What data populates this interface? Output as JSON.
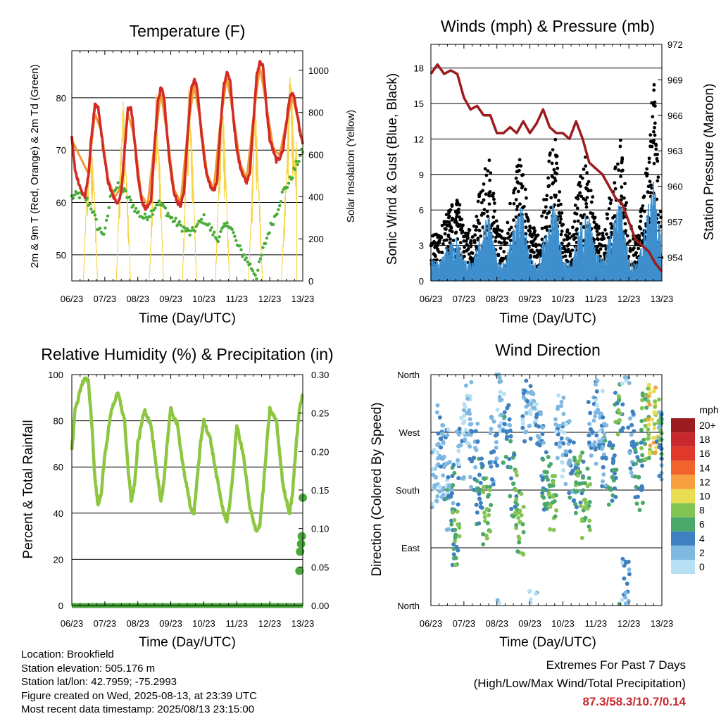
{
  "x_ticks": [
    "06/23",
    "07/23",
    "08/23",
    "09/23",
    "10/23",
    "11/23",
    "12/23",
    "13/23"
  ],
  "time_axis_label": "Time (Day/UTC)",
  "chart_data": [
    {
      "id": "temperature",
      "type": "line",
      "title": "Temperature (F)",
      "ylabel_left": "2m & 9m T (Red, Orange) & 2m Td (Green)",
      "ylabel_right": "Solar Insolation (Yellow)",
      "ylim_left": [
        45,
        89
      ],
      "yticks_left": [
        50,
        60,
        70,
        80
      ],
      "ylim_right": [
        0,
        1093
      ],
      "yticks_right": [
        0,
        200,
        400,
        600,
        800,
        1000
      ],
      "x_unit": "days after 06/23 00 UTC",
      "series": [
        {
          "color": "#d42a25",
          "axis": "left",
          "x": [
            0,
            0.1,
            0.2,
            0.3,
            0.4,
            0.5,
            0.6,
            0.7,
            0.8,
            0.9,
            1.0,
            1.1,
            1.2,
            1.3,
            1.4,
            1.5,
            1.6,
            1.7,
            1.8,
            1.9,
            2.0,
            2.1,
            2.2,
            2.3,
            2.4,
            2.5,
            2.6,
            2.7,
            2.8,
            2.9,
            3.0,
            3.1,
            3.2,
            3.3,
            3.4,
            3.5,
            3.6,
            3.7,
            3.8,
            3.9,
            4.0,
            4.1,
            4.2,
            4.3,
            4.4,
            4.5,
            4.6,
            4.7,
            4.8,
            4.9,
            5.0,
            5.1,
            5.2,
            5.3,
            5.4,
            5.5,
            5.6,
            5.7,
            5.8,
            5.9,
            6.0,
            6.1,
            6.2,
            6.3,
            6.4,
            6.5,
            6.6,
            6.7,
            6.8,
            6.9,
            7.0
          ],
          "y": [
            72.5,
            66,
            64,
            62,
            61,
            65,
            73,
            78.5,
            78,
            73,
            68,
            64,
            62,
            60.5,
            60,
            62,
            70,
            78,
            78,
            72,
            65,
            61,
            59,
            59,
            60,
            70,
            79,
            82,
            80,
            72,
            66,
            62,
            60,
            59.5,
            62,
            72,
            81,
            83.5,
            82,
            75,
            69,
            65,
            63,
            62,
            64,
            74,
            82,
            85,
            83,
            76,
            70,
            67,
            65,
            64,
            66,
            75,
            84,
            87,
            86,
            78,
            72,
            70,
            68,
            68.5,
            70,
            75,
            80,
            81,
            78,
            74,
            71
          ]
        },
        {
          "color": "#f09a34",
          "axis": "left",
          "x": [
            0,
            0.5,
            0.7,
            0.9,
            1.1,
            1.3,
            1.5,
            1.7,
            1.9,
            2.1,
            2.3,
            2.5,
            2.7,
            2.9,
            3.1,
            3.3,
            3.5,
            3.7,
            3.9,
            4.1,
            4.3,
            4.5,
            4.7,
            4.9,
            5.1,
            5.3,
            5.5,
            5.7,
            5.9,
            6.1,
            6.3,
            6.5,
            6.7,
            6.9,
            7.0
          ],
          "y": [
            72,
            65.5,
            77,
            73.5,
            64.5,
            61,
            63,
            77,
            72.5,
            61.5,
            59.5,
            71,
            81,
            72.5,
            62.5,
            60,
            73,
            82.5,
            75.5,
            65.5,
            62.5,
            75,
            84,
            76.5,
            67.5,
            64.5,
            76,
            86,
            78.5,
            70.5,
            69,
            75.5,
            80,
            74.5,
            71.5
          ]
        },
        {
          "color": "#4aad3a",
          "axis": "left",
          "x": [
            0,
            0.2,
            0.4,
            0.6,
            0.8,
            1.0,
            1.2,
            1.4,
            1.6,
            1.8,
            2.0,
            2.2,
            2.4,
            2.6,
            2.8,
            3.0,
            3.2,
            3.4,
            3.6,
            3.8,
            4.0,
            4.2,
            4.4,
            4.6,
            4.8,
            5.0,
            5.2,
            5.4,
            5.6,
            5.8,
            6.0,
            6.2,
            6.4,
            6.6,
            6.8,
            7.0
          ],
          "y": [
            61,
            61.5,
            61,
            59,
            55,
            54,
            62,
            63,
            62,
            60,
            58,
            57,
            58,
            60,
            59,
            57,
            56,
            55,
            54,
            55.5,
            57,
            55,
            53,
            55,
            56,
            52,
            50,
            48,
            46,
            51,
            55,
            58,
            62,
            64,
            67,
            70
          ]
        },
        {
          "color": "#f7d54a",
          "axis": "right",
          "x": [
            0.35,
            0.45,
            0.55,
            0.68,
            0.78,
            1.35,
            1.45,
            1.55,
            1.68,
            1.78,
            2.35,
            2.45,
            2.55,
            2.68,
            2.78,
            3.35,
            3.45,
            3.55,
            3.68,
            3.78,
            4.35,
            4.45,
            4.55,
            4.68,
            4.78,
            5.35,
            5.45,
            5.55,
            5.68,
            5.78,
            6.35,
            6.5,
            6.62,
            6.75,
            6.85,
            6.95
          ],
          "y": [
            0,
            450,
            700,
            500,
            0,
            0,
            500,
            900,
            450,
            0,
            0,
            480,
            920,
            520,
            0,
            0,
            510,
            960,
            520,
            0,
            0,
            500,
            950,
            500,
            0,
            0,
            400,
            900,
            450,
            0,
            0,
            550,
            1090,
            600,
            700,
            0
          ]
        }
      ]
    },
    {
      "id": "winds",
      "type": "scatter",
      "title": "Winds (mph) & Pressure (mb)",
      "ylabel_left": "Sonic Wind & Gust (Blue, Black)",
      "ylabel_right": "Station Pressure (Maroon)",
      "ylim_left": [
        0,
        20
      ],
      "yticks_left": [
        0,
        3,
        6,
        9,
        12,
        15,
        18
      ],
      "ylim_right": [
        952,
        972
      ],
      "yticks_right": [
        954,
        957,
        960,
        963,
        966,
        969,
        972
      ],
      "x_unit": "days after 06/23 00 UTC",
      "series": [
        {
          "color": "#3f8fcd",
          "kind": "sustained",
          "x": [
            0,
            0.25,
            0.5,
            0.75,
            1.0,
            1.25,
            1.5,
            1.75,
            2.0,
            2.25,
            2.5,
            2.75,
            3.0,
            3.25,
            3.5,
            3.75,
            4.0,
            4.25,
            4.5,
            4.75,
            5.0,
            5.25,
            5.5,
            5.75,
            6.0,
            6.25,
            6.5,
            6.75,
            7.0
          ],
          "y": [
            2,
            1.5,
            3,
            4,
            2,
            1.5,
            4,
            6,
            2,
            1.5,
            4.5,
            6.5,
            2,
            1.5,
            5,
            7,
            2,
            1.5,
            4.5,
            6.5,
            2.5,
            2,
            5,
            7,
            2,
            1.5,
            5,
            9,
            3
          ]
        },
        {
          "color": "#000000",
          "kind": "gust",
          "x": [
            0,
            0.25,
            0.5,
            0.75,
            1.0,
            1.25,
            1.5,
            1.75,
            2.0,
            2.25,
            2.5,
            2.75,
            3.0,
            3.25,
            3.5,
            3.75,
            4.0,
            4.25,
            4.5,
            4.75,
            5.0,
            5.25,
            5.5,
            5.75,
            6.0,
            6.25,
            6.5,
            6.75,
            7.0
          ],
          "y": [
            5,
            4,
            6,
            8,
            5,
            4,
            8,
            11,
            5,
            4,
            9,
            11,
            5,
            4,
            9,
            13,
            5,
            4,
            9,
            11,
            5,
            4,
            9,
            12,
            5,
            4,
            9,
            17.5,
            5
          ]
        },
        {
          "color": "#9b1c1f",
          "kind": "pressure",
          "axis": "right",
          "x": [
            0,
            0.2,
            0.4,
            0.6,
            0.8,
            1.0,
            1.2,
            1.4,
            1.6,
            1.8,
            2.0,
            2.2,
            2.4,
            2.6,
            2.8,
            3.0,
            3.2,
            3.4,
            3.6,
            3.8,
            4.0,
            4.2,
            4.4,
            4.6,
            4.8,
            5.0,
            5.2,
            5.4,
            5.6,
            5.8,
            6.0,
            6.2,
            6.4,
            6.6,
            6.8,
            7.0
          ],
          "y": [
            969.5,
            970.3,
            969.5,
            969.8,
            969.5,
            967.5,
            966.5,
            966.8,
            966,
            966,
            964.5,
            964.5,
            965,
            964.5,
            965.5,
            964.5,
            965.3,
            966.5,
            965,
            964.5,
            964.5,
            964,
            965.5,
            964,
            962,
            961.5,
            961,
            960,
            959,
            958.5,
            957,
            955.5,
            955,
            954.5,
            953.5,
            952.8
          ]
        }
      ]
    },
    {
      "id": "humidity",
      "type": "line",
      "title": "Relative Humidity (%) & Precipitation (in)",
      "ylabel_left": "Percent & Total Rainfall",
      "ylim_left": [
        0,
        100
      ],
      "yticks_left": [
        0,
        20,
        40,
        60,
        80,
        100
      ],
      "ylim_right": [
        0,
        0.3
      ],
      "yticks_right": [
        "0.00",
        "0.05",
        "0.10",
        "0.15",
        "0.20",
        "0.25",
        "0.30"
      ],
      "x_unit": "days after 06/23 00 UTC",
      "series": [
        {
          "color": "#8dc641",
          "axis": "left",
          "x": [
            0,
            0.1,
            0.2,
            0.3,
            0.4,
            0.5,
            0.6,
            0.7,
            0.8,
            0.9,
            1.0,
            1.2,
            1.4,
            1.6,
            1.7,
            1.8,
            1.9,
            2.0,
            2.2,
            2.4,
            2.6,
            2.7,
            2.8,
            2.9,
            3.0,
            3.2,
            3.4,
            3.6,
            3.7,
            3.8,
            3.9,
            4.0,
            4.2,
            4.4,
            4.6,
            4.7,
            4.8,
            4.9,
            5.0,
            5.2,
            5.4,
            5.6,
            5.7,
            5.8,
            5.9,
            6.0,
            6.2,
            6.4,
            6.6,
            6.7,
            6.8,
            6.9,
            7.0
          ],
          "y": [
            67,
            85,
            90,
            96,
            98,
            97,
            80,
            55,
            43,
            50,
            65,
            85,
            92,
            80,
            60,
            45,
            52,
            70,
            85,
            78,
            55,
            45,
            55,
            72,
            85,
            78,
            58,
            42,
            40,
            55,
            70,
            80,
            72,
            55,
            40,
            37,
            45,
            60,
            78,
            65,
            42,
            32,
            35,
            50,
            68,
            85,
            80,
            52,
            40,
            50,
            70,
            85,
            92
          ]
        },
        {
          "color": "#48a83a",
          "axis": "right",
          "kind": "precip",
          "x": [
            0,
            1,
            2,
            3,
            4,
            5,
            6,
            6.85,
            6.9,
            6.92,
            6.95,
            6.97,
            7.0
          ],
          "y": [
            0,
            0,
            0,
            0,
            0,
            0,
            0,
            0,
            0.045,
            0.07,
            0.08,
            0.09,
            0.14
          ]
        }
      ]
    },
    {
      "id": "direction",
      "type": "scatter",
      "title": "Wind Direction",
      "ylabel_left": "Direction (Colored By Speed)",
      "ylim_left": [
        0,
        360
      ],
      "yticks_left": [
        "North",
        "East",
        "South",
        "West",
        "North"
      ],
      "x_unit": "days after 06/23 00 UTC",
      "legend": {
        "title": "mph",
        "labels": [
          "20+",
          "18",
          "16",
          "14",
          "12",
          "10",
          "8",
          "6",
          "4",
          "2",
          "0"
        ],
        "colors": [
          "#9b1c1f",
          "#c8292e",
          "#e0392b",
          "#f0642b",
          "#f7a040",
          "#e9dd52",
          "#84c454",
          "#4aa86a",
          "#3e80c0",
          "#7fb8e0",
          "#b7e0f4"
        ]
      },
      "points": [
        {
          "x": 0.15,
          "dir": 200,
          "spd": 1
        },
        {
          "x": 0.3,
          "dir": 260,
          "spd": 3
        },
        {
          "x": 0.45,
          "dir": 220,
          "spd": 2
        },
        {
          "x": 0.6,
          "dir": 170,
          "spd": 4
        },
        {
          "x": 0.75,
          "dir": 110,
          "spd": 6
        },
        {
          "x": 0.9,
          "dir": 250,
          "spd": 2
        },
        {
          "x": 1.1,
          "dir": 300,
          "spd": 1
        },
        {
          "x": 1.3,
          "dir": 230,
          "spd": 3
        },
        {
          "x": 1.5,
          "dir": 180,
          "spd": 5
        },
        {
          "x": 1.7,
          "dir": 150,
          "spd": 7
        },
        {
          "x": 1.9,
          "dir": 240,
          "spd": 3
        },
        {
          "x": 2.1,
          "dir": 320,
          "spd": 1
        },
        {
          "x": 2.3,
          "dir": 270,
          "spd": 4
        },
        {
          "x": 2.5,
          "dir": 190,
          "spd": 6
        },
        {
          "x": 2.7,
          "dir": 130,
          "spd": 7
        },
        {
          "x": 2.9,
          "dir": 300,
          "spd": 2
        },
        {
          "x": 3.1,
          "dir": 330,
          "spd": 1
        },
        {
          "x": 3.3,
          "dir": 250,
          "spd": 3
        },
        {
          "x": 3.5,
          "dir": 200,
          "spd": 5
        },
        {
          "x": 3.7,
          "dir": 170,
          "spd": 7
        },
        {
          "x": 3.9,
          "dir": 280,
          "spd": 2
        },
        {
          "x": 4.1,
          "dir": 240,
          "spd": 2
        },
        {
          "x": 4.3,
          "dir": 210,
          "spd": 4
        },
        {
          "x": 4.5,
          "dir": 190,
          "spd": 6
        },
        {
          "x": 4.7,
          "dir": 160,
          "spd": 7
        },
        {
          "x": 4.9,
          "dir": 270,
          "spd": 3
        },
        {
          "x": 5.1,
          "dir": 300,
          "spd": 2
        },
        {
          "x": 5.3,
          "dir": 230,
          "spd": 4
        },
        {
          "x": 5.5,
          "dir": 200,
          "spd": 5
        },
        {
          "x": 5.7,
          "dir": 320,
          "spd": 6
        },
        {
          "x": 5.9,
          "dir": 20,
          "spd": 2
        },
        {
          "x": 6.1,
          "dir": 250,
          "spd": 3
        },
        {
          "x": 6.3,
          "dir": 200,
          "spd": 5
        },
        {
          "x": 6.5,
          "dir": 280,
          "spd": 7
        },
        {
          "x": 6.7,
          "dir": 290,
          "spd": 10
        },
        {
          "x": 6.85,
          "dir": 300,
          "spd": 9
        },
        {
          "x": 6.95,
          "dir": 250,
          "spd": 4
        }
      ]
    }
  ],
  "info": {
    "location": "Location: Brookfield",
    "elevation": "Station elevation: 505.176 m",
    "latlon": "Station lat/lon: 42.7959; -75.2993",
    "created": "Figure created on Wed, 2025-08-13, at 23:39 UTC",
    "latest": "Most recent data timestamp: 2025/08/13 23:15:00"
  },
  "extremes": {
    "title": "Extremes For Past 7 Days",
    "subtitle": "(High/Low/Max Wind/Total Precipitation)",
    "values": "87.3/58.3/10.7/0.14"
  }
}
